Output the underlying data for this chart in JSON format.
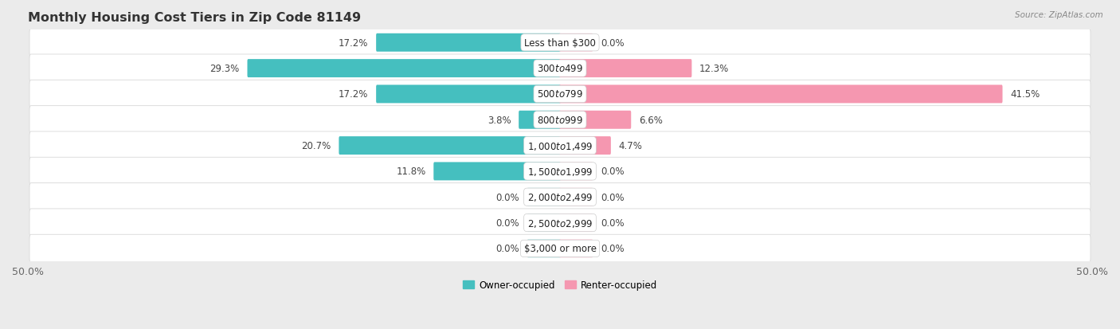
{
  "title": "Monthly Housing Cost Tiers in Zip Code 81149",
  "source": "Source: ZipAtlas.com",
  "categories": [
    "Less than $300",
    "$300 to $499",
    "$500 to $799",
    "$800 to $999",
    "$1,000 to $1,499",
    "$1,500 to $1,999",
    "$2,000 to $2,499",
    "$2,500 to $2,999",
    "$3,000 or more"
  ],
  "owner_values": [
    17.2,
    29.3,
    17.2,
    3.8,
    20.7,
    11.8,
    0.0,
    0.0,
    0.0
  ],
  "renter_values": [
    0.0,
    12.3,
    41.5,
    6.6,
    4.7,
    0.0,
    0.0,
    0.0,
    0.0
  ],
  "owner_color": "#45BFBF",
  "renter_color": "#F597B0",
  "owner_color_zero": "#A8D8D8",
  "renter_color_zero": "#F9C8D5",
  "background_color": "#EBEBEB",
  "row_bg_color": "#FFFFFF",
  "axis_limit": 50.0,
  "zero_stub": 3.0,
  "legend_labels": [
    "Owner-occupied",
    "Renter-occupied"
  ],
  "title_fontsize": 11.5,
  "label_fontsize": 8.5,
  "tick_fontsize": 9,
  "cat_label_fontsize": 8.5
}
